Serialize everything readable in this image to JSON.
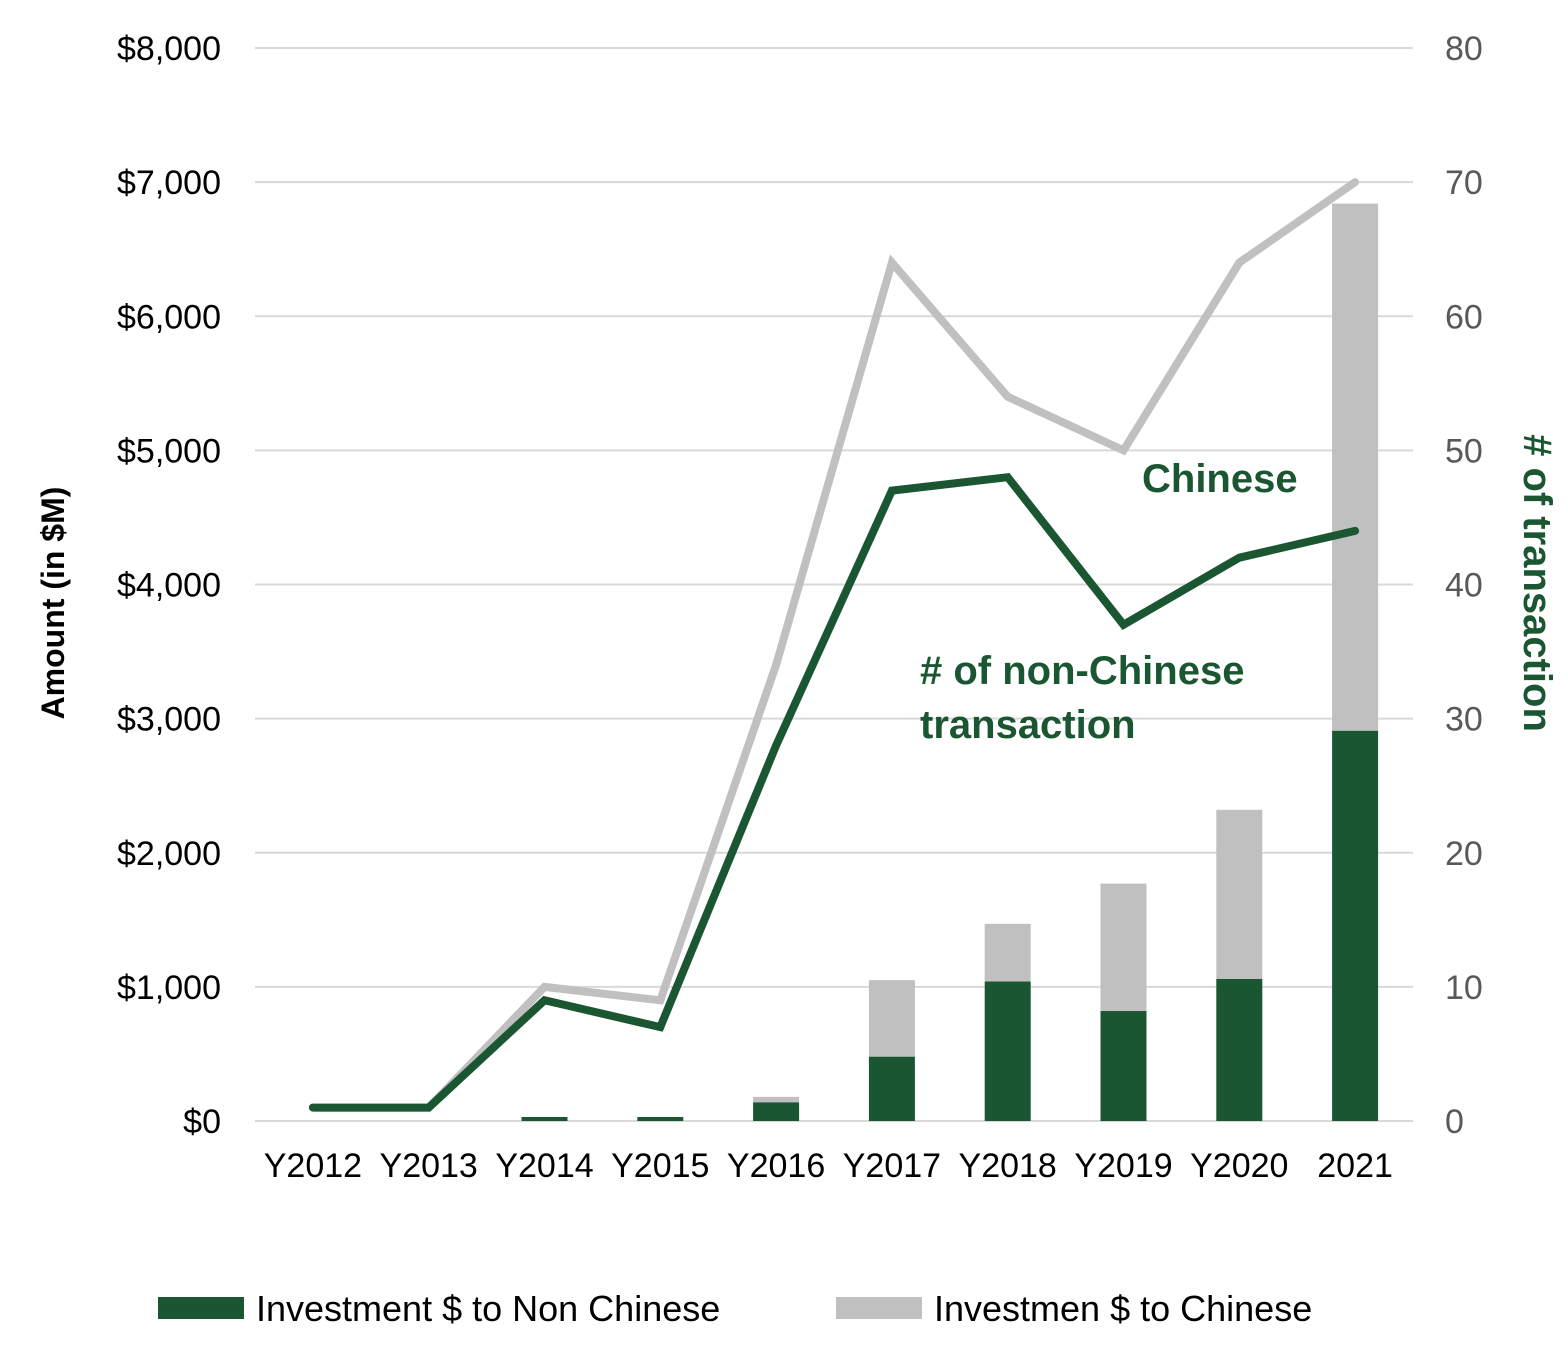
{
  "chart_data": {
    "type": "bar",
    "stacked": true,
    "categories": [
      "Y2012",
      "Y2013",
      "Y2014",
      "Y2015",
      "Y2016",
      "Y2017",
      "Y2018",
      "Y2019",
      "Y2020",
      "2021"
    ],
    "series": [
      {
        "name": "Investment $ to Non Chinese",
        "kind": "bar",
        "axis": "left",
        "color": "#1a5632",
        "values": [
          0,
          0,
          30,
          30,
          140,
          480,
          1040,
          820,
          1060,
          2910
        ]
      },
      {
        "name": "Investmen $ to Chinese",
        "kind": "bar",
        "axis": "left",
        "color": "#c0c0c0",
        "values": [
          0,
          0,
          0,
          0,
          40,
          570,
          430,
          950,
          1260,
          3930
        ]
      },
      {
        "kind": "line",
        "axis": "right",
        "color": "#c0c0c0",
        "values": [
          1,
          1,
          10,
          9,
          34,
          64,
          54,
          50,
          64,
          70
        ]
      },
      {
        "kind": "line",
        "axis": "right",
        "color": "#1a5632",
        "values": [
          1,
          1,
          9,
          7,
          28,
          47,
          48,
          37,
          42,
          44
        ]
      }
    ],
    "y_left": {
      "label": "Amount (in $M)",
      "range": [
        0,
        8000
      ],
      "ticks": [
        "$0",
        "$1,000",
        "$2,000",
        "$3,000",
        "$4,000",
        "$5,000",
        "$6,000",
        "$7,000",
        "$8,000"
      ]
    },
    "y_right": {
      "label": "# of transaction",
      "range": [
        0,
        80
      ],
      "ticks": [
        "0",
        "10",
        "20",
        "30",
        "40",
        "50",
        "60",
        "70",
        "80"
      ]
    },
    "annotations": {
      "chinese_line": "Chinese",
      "non_chinese_line_1": "# of non-Chinese",
      "non_chinese_line_2": "transaction"
    },
    "grid": true,
    "legend_position": "bottom"
  }
}
